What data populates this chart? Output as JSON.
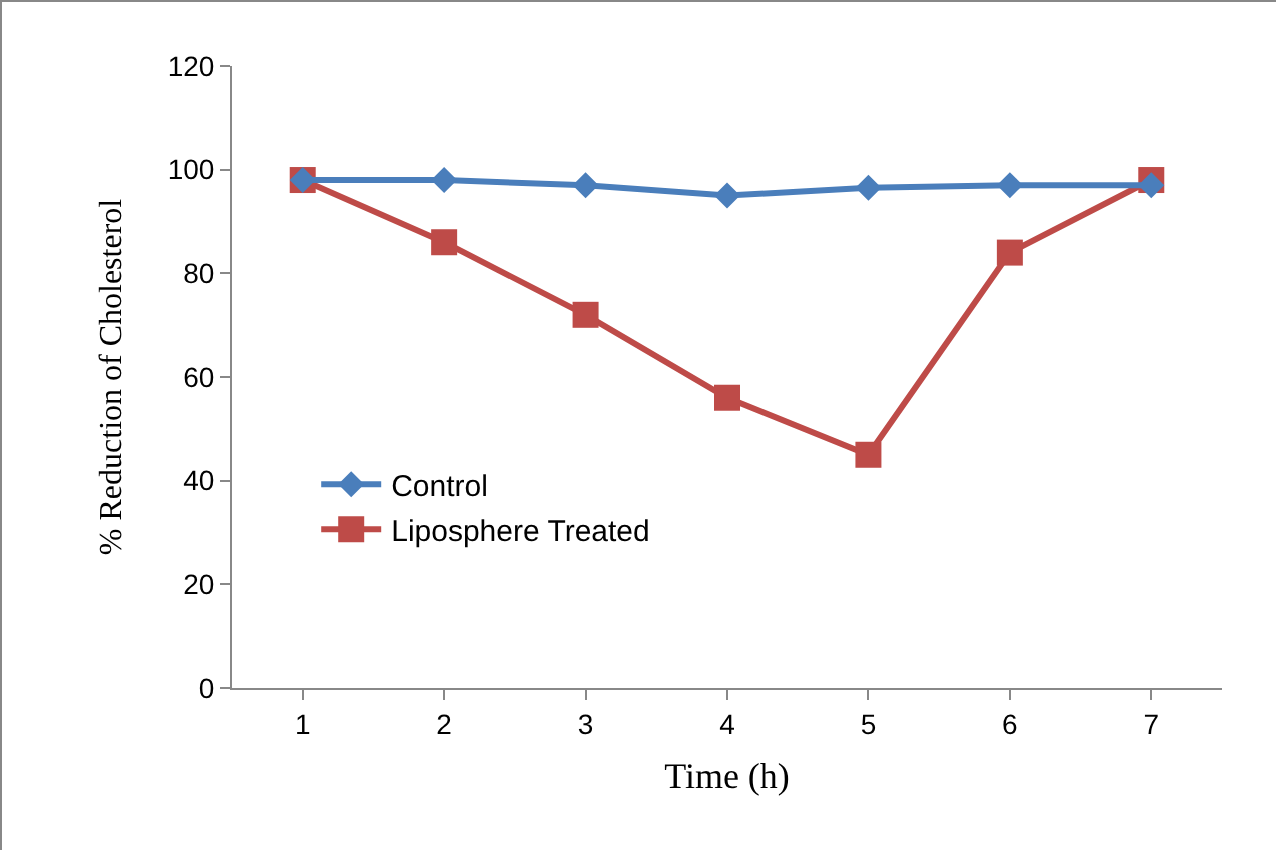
{
  "chart_data": {
    "type": "line",
    "xlabel": "Time (h)",
    "ylabel": "% Reduction of Cholesterol",
    "categories": [
      "1",
      "2",
      "3",
      "4",
      "5",
      "6",
      "7"
    ],
    "series": [
      {
        "name": "Control",
        "color": "#4a7ebb",
        "values": [
          98,
          98,
          97,
          95,
          96.5,
          97,
          97
        ],
        "marker": "diamond"
      },
      {
        "name": "Liposphere Treated",
        "color": "#be4b48",
        "values": [
          98,
          86,
          72,
          56,
          45,
          84,
          98
        ],
        "marker": "square"
      }
    ],
    "ylim": [
      0,
      120
    ],
    "yticks": [
      0,
      20,
      40,
      60,
      80,
      100,
      120
    ],
    "grid": false,
    "legend": "bottom left",
    "line_style": "solid"
  }
}
